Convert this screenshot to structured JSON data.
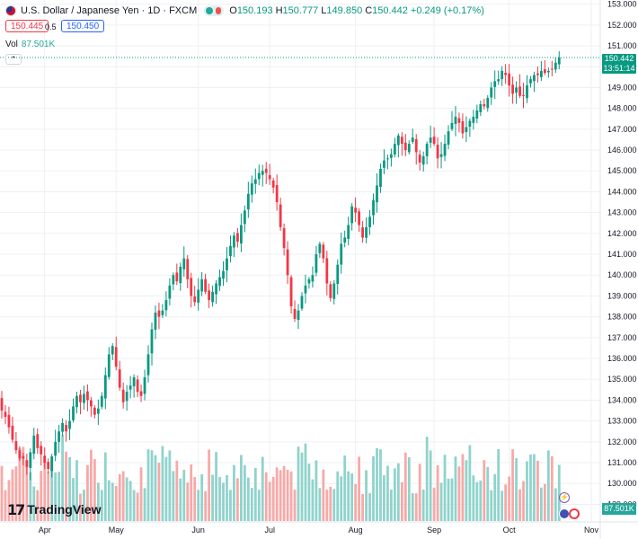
{
  "header": {
    "symbol": "U.S. Dollar / Japanese Yen · 1D · FXCM",
    "open_label": "O",
    "open": "150.193",
    "high_label": "H",
    "high": "150.777",
    "low_label": "L",
    "low": "149.850",
    "close_label": "C",
    "close": "150.442",
    "change": "+0.249 (+0.17%)"
  },
  "trade": {
    "sell": "150.445",
    "spread": "0.5",
    "buy": "150.450"
  },
  "volume": {
    "label": "Vol",
    "value": "87.501K"
  },
  "collapse_glyph": "⌃",
  "last_price": {
    "price": "150.442",
    "countdown": "13:51:14"
  },
  "brand": {
    "name": "TradingView"
  },
  "colors": {
    "up": "#089981",
    "down": "#f23645",
    "vol_up": "#8fd3cc",
    "vol_down": "#f7a9a7",
    "grid": "#eef0f3",
    "last_line": "#089981"
  },
  "events": [
    {
      "icon": "lightning-icon",
      "glyph": "⚡"
    },
    {
      "icon": "flag-icon",
      "glyph": ""
    },
    {
      "icon": "earnings-icon",
      "glyph": ""
    }
  ],
  "chart_data": {
    "type": "candlestick",
    "title": "U.S. Dollar / Japanese Yen · 1D · FXCM",
    "y_ticks": [
      129,
      130,
      131,
      132,
      133,
      134,
      135,
      136,
      137,
      138,
      139,
      140,
      141,
      142,
      143,
      144,
      145,
      146,
      147,
      148,
      149,
      150,
      151,
      152,
      153
    ],
    "y_tick_labels": [
      "129.000",
      "130.000",
      "131.000",
      "132.000",
      "133.000",
      "134.000",
      "135.000",
      "136.000",
      "137.000",
      "138.000",
      "139.000",
      "140.000",
      "141.000",
      "142.000",
      "143.000",
      "144.000",
      "145.000",
      "146.000",
      "147.000",
      "148.000",
      "149.000",
      "150.000",
      "151.000",
      "152.000",
      "153.000"
    ],
    "ylim": [
      128.2,
      153.2
    ],
    "x_ticks": [
      {
        "label": "Apr",
        "index": 12
      },
      {
        "label": "May",
        "index": 32
      },
      {
        "label": "Jun",
        "index": 55
      },
      {
        "label": "Jul",
        "index": 75
      },
      {
        "label": "Aug",
        "index": 99
      },
      {
        "label": "Sep",
        "index": 121
      },
      {
        "label": "Oct",
        "index": 142
      },
      {
        "label": "Nov",
        "index": 165
      }
    ],
    "n_slots": 168,
    "close_series": [
      133.5,
      133.2,
      132.7,
      132.1,
      131.6,
      131.2,
      131.2,
      130.8,
      131.5,
      132.3,
      131.7,
      131.4,
      131.0,
      130.7,
      131.3,
      132.0,
      132.5,
      132.9,
      132.5,
      133.0,
      133.7,
      134.2,
      133.9,
      134.3,
      134.0,
      133.7,
      133.3,
      133.6,
      134.2,
      135.2,
      136.2,
      136.6,
      135.6,
      134.6,
      133.9,
      134.4,
      134.7,
      135.1,
      134.4,
      134.2,
      135.1,
      136.2,
      137.4,
      138.2,
      138.0,
      138.3,
      138.8,
      139.5,
      140.0,
      139.7,
      140.4,
      140.8,
      139.8,
      139.0,
      138.7,
      139.3,
      139.8,
      139.2,
      138.8,
      139.2,
      139.6,
      139.9,
      140.2,
      140.8,
      141.4,
      141.9,
      141.6,
      142.4,
      143.1,
      143.9,
      144.4,
      144.6,
      144.9,
      145.0,
      144.9,
      144.6,
      144.2,
      143.5,
      142.3,
      141.3,
      140.0,
      138.5,
      137.9,
      138.3,
      139.0,
      139.5,
      139.8,
      140.0,
      141.0,
      141.5,
      140.8,
      139.6,
      138.9,
      139.6,
      140.5,
      141.5,
      141.8,
      142.4,
      143.3,
      143.0,
      142.4,
      141.8,
      142.3,
      142.8,
      143.6,
      144.3,
      145.1,
      145.5,
      145.6,
      145.8,
      146.3,
      146.7,
      146.3,
      146.0,
      146.3,
      146.6,
      145.9,
      145.4,
      145.7,
      146.3,
      146.6,
      146.3,
      145.6,
      145.8,
      146.3,
      146.9,
      147.3,
      147.6,
      147.3,
      146.8,
      147.1,
      147.4,
      147.6,
      147.9,
      148.2,
      148.1,
      148.5,
      149.0,
      149.3,
      149.4,
      149.8,
      149.6,
      149.1,
      148.7,
      149.0,
      148.6,
      148.6,
      149.1,
      149.4,
      149.6,
      149.6,
      149.8,
      149.7,
      149.8,
      149.9,
      150.193,
      150.442
    ],
    "candles_first_index": 0,
    "volume_max": 100
  }
}
